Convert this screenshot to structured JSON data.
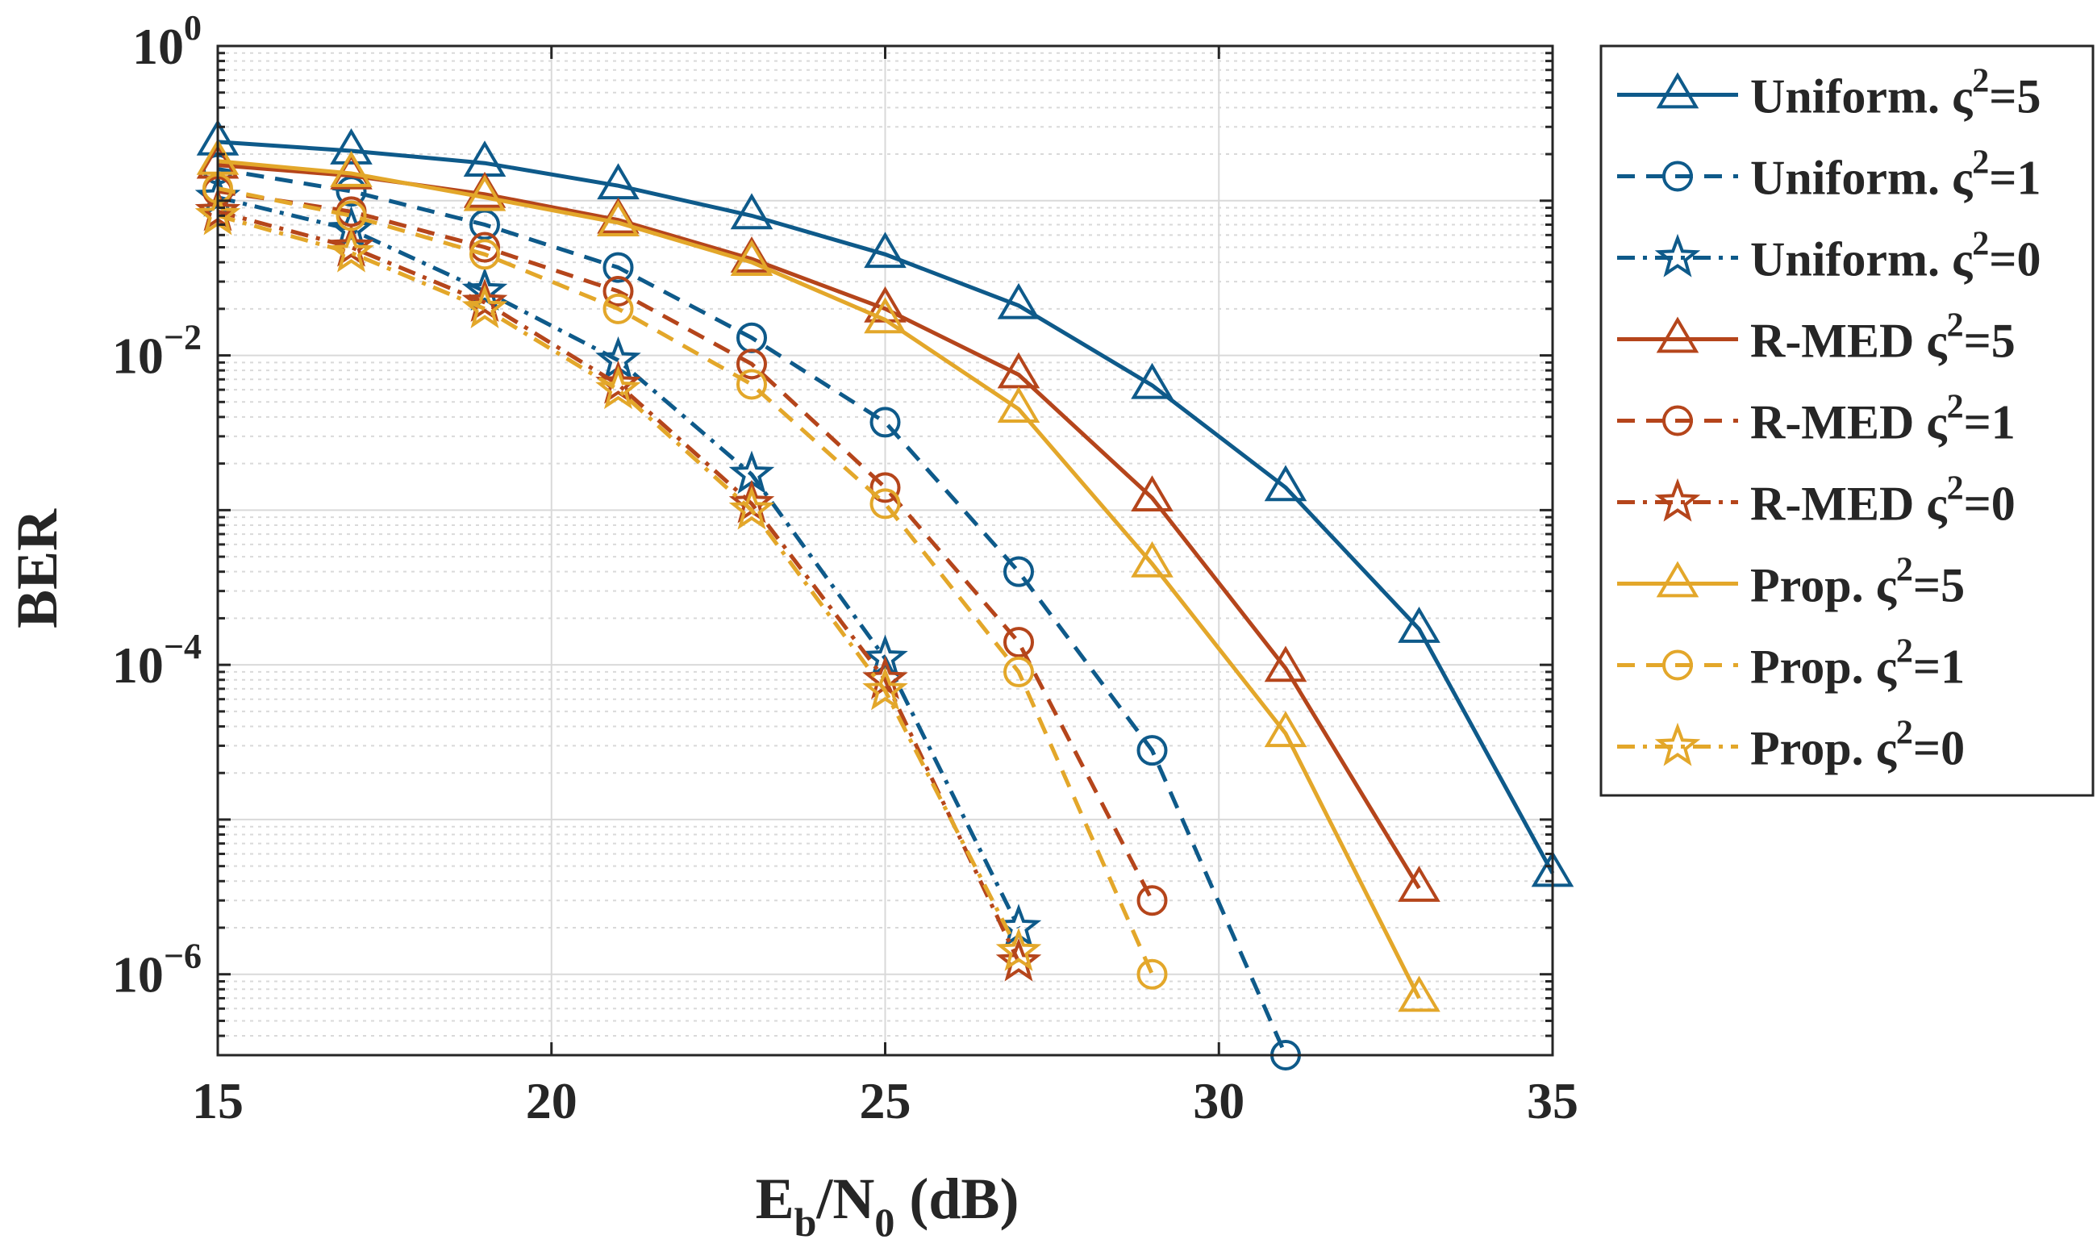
{
  "chart_data": {
    "type": "line",
    "title": "",
    "xlabel": {
      "base": "E",
      "sub1": "b",
      "mid": "/N",
      "sub2": "0",
      "tail": " (dB)"
    },
    "ylabel": "BER",
    "yscale": "log",
    "xlim": [
      15,
      35
    ],
    "ylim": [
      3e-07,
      1
    ],
    "grid": true,
    "legend_position": "outside-right",
    "xticks": [
      15,
      20,
      25,
      30,
      35
    ],
    "xtick_labels": [
      "15",
      "20",
      "25",
      "30",
      "35"
    ],
    "yticks": [
      {
        "value": 1,
        "base": "10",
        "exp": "0"
      },
      {
        "value": 0.01,
        "base": "10",
        "exp": "−2"
      },
      {
        "value": 0.0001,
        "base": "10",
        "exp": "−4"
      },
      {
        "value": 1e-06,
        "base": "10",
        "exp": "−6"
      }
    ],
    "series": [
      {
        "name": "Uniform. ς²=5",
        "label_main": "Uniform. ς",
        "label_sup": "2",
        "label_tail": "=5",
        "color": "#0E5A8A",
        "dash": "solid",
        "marker": "triangle",
        "x": [
          15,
          17,
          19,
          21,
          23,
          25,
          27,
          29,
          31,
          33,
          35
        ],
        "y": [
          0.24,
          0.21,
          0.175,
          0.125,
          0.08,
          0.045,
          0.021,
          0.0064,
          0.0014,
          0.00017,
          4.5e-06
        ]
      },
      {
        "name": "Uniform. ς²=1",
        "label_main": "Uniform. ς",
        "label_sup": "2",
        "label_tail": "=1",
        "color": "#0E5A8A",
        "dash": "dashed",
        "marker": "circle",
        "x": [
          15,
          17,
          19,
          21,
          23,
          25,
          27,
          29,
          31
        ],
        "y": [
          0.16,
          0.115,
          0.07,
          0.037,
          0.013,
          0.0037,
          0.0004,
          2.8e-05,
          3e-07
        ]
      },
      {
        "name": "Uniform. ς²=0",
        "label_main": "Uniform. ς",
        "label_sup": "2",
        "label_tail": "=0",
        "color": "#0E5A8A",
        "dash": "dashdot",
        "marker": "star",
        "x": [
          15,
          17,
          19,
          21,
          23,
          25,
          27
        ],
        "y": [
          0.105,
          0.065,
          0.026,
          0.0093,
          0.0017,
          0.00011,
          2e-06
        ]
      },
      {
        "name": "R-MED ς²=5",
        "label_main": "R-MED ς",
        "label_sup": "2",
        "label_tail": "=5",
        "color": "#B5451B",
        "dash": "solid",
        "marker": "triangle",
        "x": [
          15,
          17,
          19,
          21,
          23,
          25,
          27,
          29,
          31,
          33
        ],
        "y": [
          0.17,
          0.145,
          0.11,
          0.075,
          0.042,
          0.02,
          0.0075,
          0.0012,
          9.5e-05,
          3.6e-06
        ]
      },
      {
        "name": "R-MED ς²=1",
        "label_main": "R-MED ς",
        "label_sup": "2",
        "label_tail": "=1",
        "color": "#B5451B",
        "dash": "dashed",
        "marker": "circle",
        "x": [
          15,
          17,
          19,
          21,
          23,
          25,
          27,
          29
        ],
        "y": [
          0.115,
          0.085,
          0.05,
          0.026,
          0.0088,
          0.0014,
          0.00014,
          3e-06
        ]
      },
      {
        "name": "R-MED ς²=0",
        "label_main": "R-MED ς",
        "label_sup": "2",
        "label_tail": "=0",
        "color": "#B5451B",
        "dash": "dashdot",
        "marker": "star",
        "x": [
          15,
          17,
          19,
          21,
          23,
          25,
          27
        ],
        "y": [
          0.085,
          0.05,
          0.022,
          0.0065,
          0.0011,
          8e-05,
          1.2e-06
        ]
      },
      {
        "name": "Prop. ς²=5",
        "label_main": "Prop. ς",
        "label_sup": "2",
        "label_tail": "=5",
        "color": "#E3A72A",
        "dash": "solid",
        "marker": "triangle",
        "x": [
          15,
          17,
          19,
          21,
          23,
          25,
          27,
          29,
          31,
          33
        ],
        "y": [
          0.18,
          0.15,
          0.105,
          0.072,
          0.04,
          0.017,
          0.0045,
          0.00045,
          3.6e-05,
          7e-07
        ]
      },
      {
        "name": "Prop. ς²=1",
        "label_main": "Prop. ς",
        "label_sup": "2",
        "label_tail": "=1",
        "color": "#E3A72A",
        "dash": "dashed",
        "marker": "circle",
        "x": [
          15,
          17,
          19,
          21,
          23,
          25,
          27,
          29
        ],
        "y": [
          0.12,
          0.08,
          0.045,
          0.02,
          0.0065,
          0.0011,
          9e-05,
          1e-06
        ]
      },
      {
        "name": "Prop. ς²=0",
        "label_main": "Prop. ς",
        "label_sup": "2",
        "label_tail": "=0",
        "color": "#E3A72A",
        "dash": "dashdot",
        "marker": "star",
        "x": [
          15,
          17,
          19,
          21,
          23,
          25,
          27
        ],
        "y": [
          0.08,
          0.046,
          0.02,
          0.006,
          0.001,
          6.8e-05,
          1.4e-06
        ]
      }
    ]
  }
}
